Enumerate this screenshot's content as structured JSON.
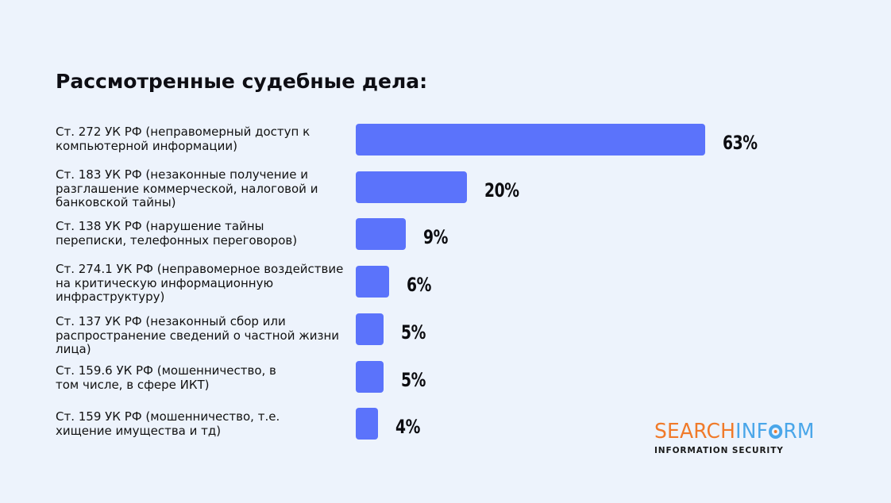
{
  "title": "Рассмотренные судебные дела:",
  "chart_data": {
    "type": "bar",
    "orientation": "horizontal",
    "categories": [
      "Ст. 272 УК РФ (неправомерный доступ к\nкомпьютерной информации)",
      "Ст. 183 УК РФ (незаконные получение и\nразглашение коммерческой, налоговой и\nбанковской тайны)",
      "Ст. 138 УК РФ (нарушение тайны\nпереписки, телефонных переговоров)",
      "Ст. 274.1 УК РФ (неправомерное воздействие\nна критическую информационную\nинфраструктуру)",
      "Ст. 137 УК РФ (незаконный сбор или\nраспространение сведений о частной жизни\nлица)",
      "Ст. 159.6 УК РФ (мошенничество, в\nтом числе, в сфере ИКТ)",
      "Ст. 159 УК РФ (мошенничество, т.е.\nхищение имущества и тд)"
    ],
    "values": [
      63,
      20,
      9,
      6,
      5,
      5,
      4
    ],
    "value_labels": [
      "63%",
      "20%",
      "9%",
      "6%",
      "5%",
      "5%",
      "4%"
    ],
    "unit": "%",
    "bar_color": "#5b73fb",
    "grid": false,
    "legend": "none"
  },
  "logo": {
    "part1": "SEARCH",
    "part2": "INF",
    "part3": "RM",
    "tagline": "INFORMATION SECURITY",
    "color_orange": "#f07a2a",
    "color_blue": "#4aa6e9"
  }
}
